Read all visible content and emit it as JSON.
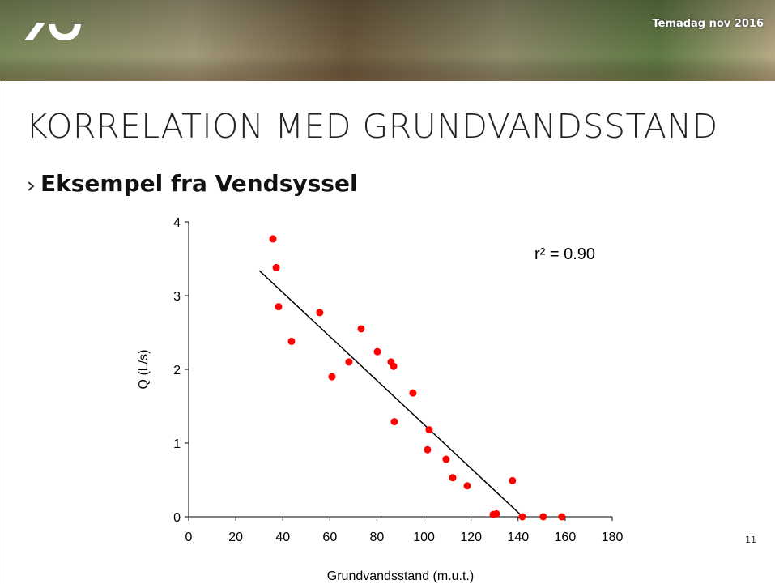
{
  "header": {
    "event": "Temadag nov 2016"
  },
  "title": "KORRELATION MED GRUNDVANDSSTAND",
  "subtitle": "Eksempel fra Vendsyssel",
  "page_number": "11",
  "chart_data": {
    "type": "scatter",
    "x_label": "Grundvandsstand (m.u.t.)",
    "y_label": "Q (L/s)",
    "annotation": "r² = 0.90",
    "color": "#ff0000",
    "x": [
      35.8,
      37.2,
      38.2,
      43.7,
      55.7,
      60.9,
      68.1,
      73.3,
      80.2,
      86.0,
      87.1,
      87.4,
      95.3,
      102.2,
      101.5,
      109.4,
      112.2,
      118.4,
      129.4,
      130.8,
      137.6,
      141.8,
      150.7,
      158.6
    ],
    "y": [
      3.77,
      3.38,
      2.85,
      2.38,
      2.77,
      1.9,
      2.1,
      2.55,
      2.24,
      2.1,
      2.04,
      1.29,
      1.68,
      1.18,
      0.91,
      0.78,
      0.53,
      0.42,
      0.03,
      0.04,
      0.49,
      0,
      0,
      0
    ],
    "trendline": {
      "x": [
        30,
        142
      ],
      "y": [
        3.34,
        0
      ],
      "color": "#000000"
    },
    "xlim": [
      0,
      180
    ],
    "ylim": [
      0,
      4
    ],
    "xticks": [
      0,
      20,
      40,
      60,
      80,
      100,
      120,
      140,
      160,
      180
    ],
    "yticks": [
      0,
      1,
      2,
      3,
      4
    ]
  }
}
